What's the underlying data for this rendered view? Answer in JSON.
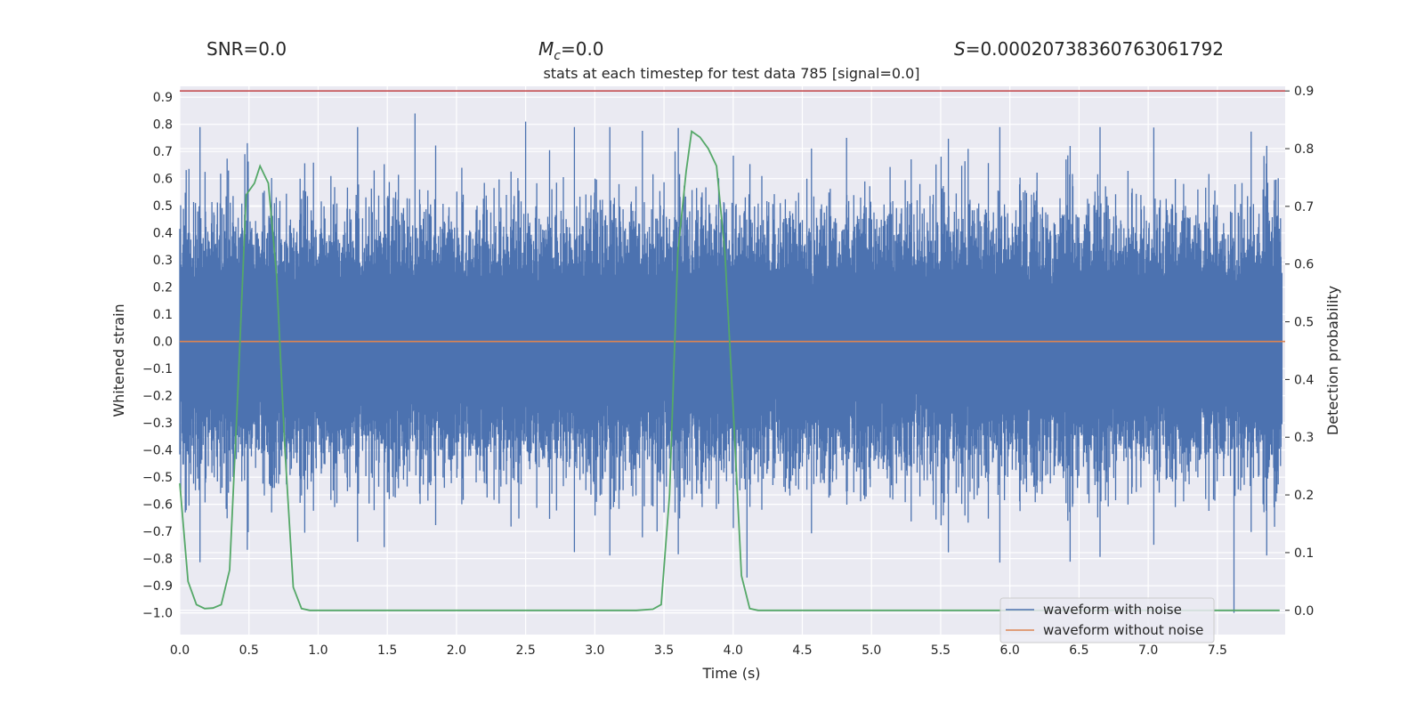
{
  "chart_data": {
    "type": "line",
    "title": "stats at each timestep for test data 785 [signal=0.0]",
    "stats": {
      "snr": "SNR=0.0",
      "mc_symbol": "M",
      "mc_sub": "c",
      "mc_value": "=0.0",
      "s_symbol": "S",
      "s_value": "=0.00020738360763061792"
    },
    "xlabel": "Time (s)",
    "ylabel_left": "Whitened strain",
    "ylabel_right": "Detection probability",
    "xlim": [
      0.0,
      7.99
    ],
    "ylim_left": [
      -1.08,
      0.94
    ],
    "ylim_right": [
      -0.042,
      0.908
    ],
    "x_ticks": [
      0.0,
      0.5,
      1.0,
      1.5,
      2.0,
      2.5,
      3.0,
      3.5,
      4.0,
      4.5,
      5.0,
      5.5,
      6.0,
      6.5,
      7.0,
      7.5
    ],
    "x_tick_labels": [
      "0.0",
      "0.5",
      "1.0",
      "1.5",
      "2.0",
      "2.5",
      "3.0",
      "3.5",
      "4.0",
      "4.5",
      "5.0",
      "5.5",
      "6.0",
      "6.5",
      "7.0",
      "7.5"
    ],
    "y_left_ticks": [
      0.9,
      0.8,
      0.7,
      0.6,
      0.5,
      0.4,
      0.3,
      0.2,
      0.1,
      0.0,
      -0.1,
      -0.2,
      -0.3,
      -0.4,
      -0.5,
      -0.6,
      -0.7,
      -0.8,
      -0.9,
      -1.0
    ],
    "y_left_tick_labels": [
      "0.9",
      "0.8",
      "0.7",
      "0.6",
      "0.5",
      "0.4",
      "0.3",
      "0.2",
      "0.1",
      "0.0",
      "−0.1",
      "−0.2",
      "−0.3",
      "−0.4",
      "−0.5",
      "−0.6",
      "−0.7",
      "−0.8",
      "−0.9",
      "−1.0"
    ],
    "y_right_ticks": [
      0.9,
      0.8,
      0.7,
      0.6,
      0.5,
      0.4,
      0.3,
      0.2,
      0.1,
      0.0
    ],
    "y_right_tick_labels": [
      "0.9",
      "0.8",
      "0.7",
      "0.6",
      "0.5",
      "0.4",
      "0.3",
      "0.2",
      "0.1",
      "0.0"
    ],
    "threshold": 0.9,
    "series": [
      {
        "name": "waveform with noise",
        "color": "#4c72b0",
        "axis": "left",
        "style": "dense-noise",
        "band": [
          -0.4,
          0.4
        ],
        "peak_max": 0.84,
        "peak_min": -1.0
      },
      {
        "name": "waveform without noise",
        "color": "#dd8452",
        "axis": "left",
        "values_constant": 0.0
      },
      {
        "name": "detection probability",
        "color": "#55a868",
        "axis": "right",
        "x": [
          0.0,
          0.06,
          0.12,
          0.18,
          0.24,
          0.3,
          0.36,
          0.42,
          0.48,
          0.54,
          0.58,
          0.64,
          0.7,
          0.76,
          0.82,
          0.88,
          0.94,
          1.0,
          1.5,
          2.0,
          2.5,
          3.0,
          3.3,
          3.42,
          3.48,
          3.54,
          3.6,
          3.66,
          3.7,
          3.76,
          3.82,
          3.88,
          3.94,
          4.0,
          4.06,
          4.12,
          4.18,
          4.3,
          5.0,
          6.0,
          7.0,
          7.95
        ],
        "values": [
          0.22,
          0.05,
          0.01,
          0.003,
          0.004,
          0.01,
          0.07,
          0.38,
          0.72,
          0.74,
          0.77,
          0.74,
          0.58,
          0.28,
          0.04,
          0.003,
          0.0,
          0.0,
          0.0,
          0.0,
          0.0,
          0.0,
          0.0,
          0.002,
          0.01,
          0.2,
          0.62,
          0.76,
          0.83,
          0.82,
          0.8,
          0.77,
          0.62,
          0.35,
          0.06,
          0.003,
          0.0,
          0.0,
          0.0,
          0.0,
          0.0,
          0.0
        ]
      }
    ],
    "threshold_line": {
      "color": "#c44e52",
      "value": 0.9,
      "axis": "right"
    },
    "legend": {
      "position": "bottom-right",
      "entries": [
        "waveform with noise",
        "waveform without noise"
      ]
    }
  }
}
